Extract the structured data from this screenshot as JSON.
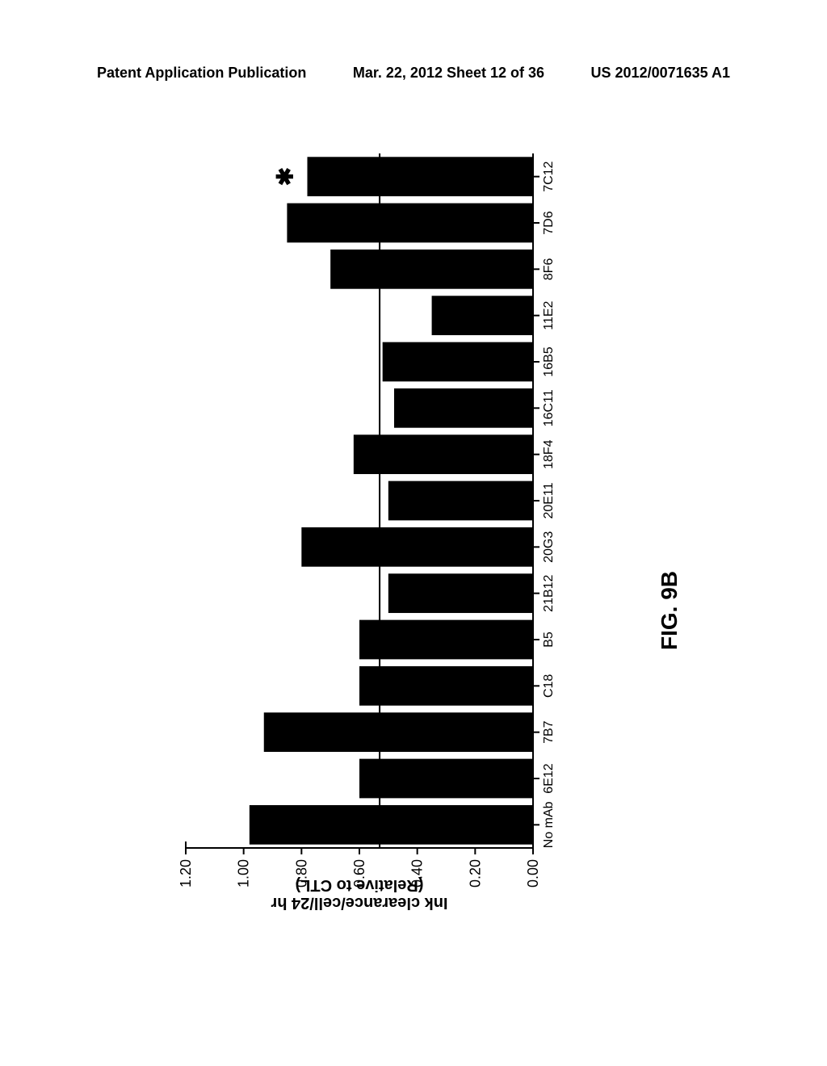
{
  "header": {
    "left": "Patent Application Publication",
    "center": "Mar. 22, 2012  Sheet 12 of 36",
    "right": "US 2012/0071635 A1"
  },
  "chart": {
    "type": "bar",
    "orientation": "horizontal",
    "categories": [
      "7C12",
      "7D6",
      "8F6",
      "11E2",
      "16B5",
      "16C11",
      "18F4",
      "20E11",
      "20G3",
      "21B12",
      "B5",
      "C18",
      "7B7",
      "6E12",
      "No mAb"
    ],
    "values": [
      0.78,
      0.85,
      0.7,
      0.35,
      0.52,
      0.48,
      0.62,
      0.5,
      0.8,
      0.5,
      0.6,
      0.6,
      0.93,
      0.6,
      0.98
    ],
    "ylim": [
      0,
      1.2
    ],
    "ytick_values": [
      0.0,
      0.2,
      0.4,
      0.6,
      0.8,
      1.0,
      1.2
    ],
    "ytick_labels": [
      "0.00",
      "0.20",
      "0.40",
      "0.60",
      "0.80",
      "1.00",
      "1.20"
    ],
    "ylabel_line1": "Ink clearance/cell/24 hr",
    "ylabel_line2": "(Relative to CTL)",
    "bar_color": "#000000",
    "background_color": "#ffffff",
    "tick_color": "#000000",
    "axis_color": "#000000",
    "bar_gap": 0.15,
    "label_fontsize": 18,
    "tick_fontsize": 18,
    "asterisk_index": 0,
    "asterisk_symbol": "✱",
    "has_reference_line": true,
    "reference_line_value": 0.53,
    "reference_line_color": "#000000",
    "reference_line_width": 2
  },
  "figure_label": "FIG. 9B"
}
